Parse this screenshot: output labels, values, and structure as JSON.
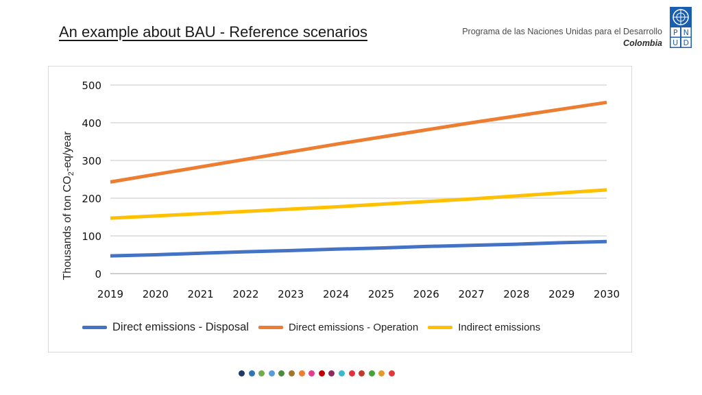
{
  "header": {
    "title": "An example about BAU - Reference scenarios",
    "org_line1": "Programa de las Naciones Unidas para el Desarrollo",
    "org_line2": "Colombia",
    "logo_letters": [
      "P",
      "N",
      "U",
      "D"
    ]
  },
  "chart_data": {
    "type": "line",
    "title": "",
    "xlabel": "",
    "ylabel": "Thousands of ton CO2-eq/year",
    "ylabel_parts": {
      "pre": "Thousands of ton CO",
      "sub": "2",
      "post": "-eq/year"
    },
    "x": [
      2019,
      2020,
      2021,
      2022,
      2023,
      2024,
      2025,
      2026,
      2027,
      2028,
      2029,
      2030
    ],
    "ylim": [
      0,
      500
    ],
    "yticks": [
      0,
      100,
      200,
      300,
      400,
      500
    ],
    "grid": true,
    "legend_position": "bottom",
    "series": [
      {
        "name": "Direct emissions - Disposal",
        "color": "#4472C4",
        "values": [
          47,
          50,
          54,
          58,
          61,
          65,
          68,
          72,
          75,
          78,
          82,
          85
        ]
      },
      {
        "name": "Direct emissions - Operation",
        "color": "#ED7D31",
        "values": [
          243,
          263,
          283,
          303,
          323,
          343,
          362,
          381,
          400,
          418,
          436,
          454
        ]
      },
      {
        "name": "Indirect emissions",
        "color": "#FFC000",
        "values": [
          147,
          153,
          159,
          165,
          171,
          177,
          184,
          191,
          198,
          206,
          214,
          222
        ]
      }
    ]
  },
  "footer": {
    "dot_colors": [
      "#1f3864",
      "#2e75b6",
      "#70ad47",
      "#5b9bd5",
      "#4e8a3a",
      "#a5742a",
      "#ed7d31",
      "#e53a8f",
      "#c00000",
      "#8e2a5e",
      "#3cb8d0",
      "#e5303c",
      "#c0392b",
      "#44a33b",
      "#e39b2f",
      "#e03a3a"
    ]
  }
}
